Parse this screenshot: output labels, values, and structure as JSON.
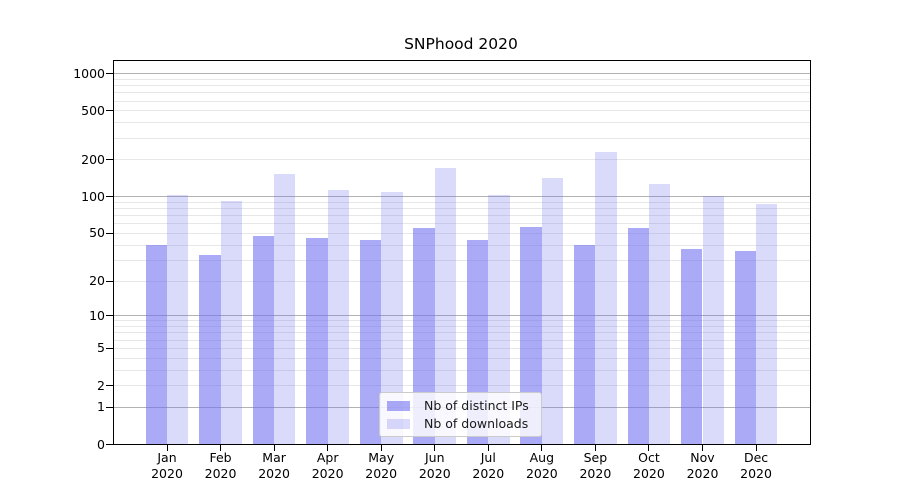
{
  "chart_data": {
    "type": "bar",
    "title": "SNPhood 2020",
    "year_label": "2020",
    "categories": [
      "Jan",
      "Feb",
      "Mar",
      "Apr",
      "May",
      "Jun",
      "Jul",
      "Aug",
      "Sep",
      "Oct",
      "Nov",
      "Dec"
    ],
    "series": [
      {
        "name": "Nb of distinct IPs",
        "values": [
          40,
          33,
          48,
          46,
          44,
          55,
          44,
          57,
          40,
          55,
          37,
          36
        ]
      },
      {
        "name": "Nb of downloads",
        "values": [
          103,
          92,
          152,
          113,
          109,
          171,
          103,
          141,
          232,
          128,
          101,
          88
        ]
      }
    ],
    "yscale": "log10(value+1)",
    "ylim": [
      0,
      1300
    ],
    "yticks": [
      {
        "value": 0,
        "label": "0",
        "major": false
      },
      {
        "value": 1,
        "label": "1",
        "major": true
      },
      {
        "value": 2,
        "label": "2",
        "major": false
      },
      {
        "value": 5,
        "label": "5",
        "major": false
      },
      {
        "value": 10,
        "label": "10",
        "major": true
      },
      {
        "value": 20,
        "label": "20",
        "major": false
      },
      {
        "value": 50,
        "label": "50",
        "major": false
      },
      {
        "value": 100,
        "label": "100",
        "major": true
      },
      {
        "value": 200,
        "label": "200",
        "major": false
      },
      {
        "value": 500,
        "label": "500",
        "major": false
      },
      {
        "value": 1000,
        "label": "1000",
        "major": true
      }
    ],
    "minor_gridline_values": [
      3,
      4,
      6,
      7,
      8,
      9,
      30,
      40,
      60,
      70,
      80,
      90,
      300,
      400,
      600,
      700,
      800,
      900
    ],
    "grid": true,
    "legend": {
      "position": "inside-lower-center",
      "items": [
        {
          "label": "Nb of distinct IPs",
          "series_index": 0
        },
        {
          "label": "Nb of downloads",
          "series_index": 1
        }
      ]
    },
    "colors": {
      "bar_ips": "rgba(108,108,240,0.58)",
      "bar_downloads": "rgba(108,108,240,0.25)",
      "major_grid": "#b2b2b2",
      "minor_grid": "#e7e7e7",
      "axis": "#000000",
      "text": "#000000",
      "background": "#ffffff"
    }
  }
}
